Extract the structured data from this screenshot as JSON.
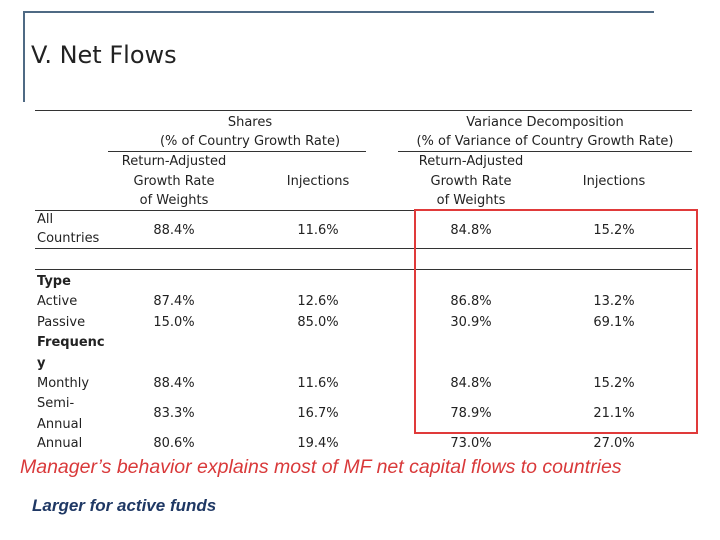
{
  "slide": {
    "title": "V. Net Flows",
    "frame_color": "#4f6a84",
    "highlight_color": "#e03a3a",
    "caption": "Manager’s behavior explains most of MF net capital flows to countries",
    "caption_color": "#d9393a",
    "subnote": "Larger for active funds",
    "subnote_color": "#1f3864"
  },
  "table": {
    "groups": [
      {
        "title": "Shares",
        "subtitle": "(% of Country Growth Rate)"
      },
      {
        "title": "Variance Decomposition",
        "subtitle": "(% of Variance of Country Growth Rate)"
      }
    ],
    "columns": [
      {
        "line1": "Return-Adjusted",
        "line2": "Growth Rate",
        "line3": "of Weights"
      },
      {
        "label": "Injections"
      },
      {
        "line1": "Return-Adjusted",
        "line2": "Growth Rate",
        "line3": "of Weights"
      },
      {
        "label": "Injections"
      }
    ],
    "all": {
      "label1": "All",
      "label2": "Countries",
      "values": [
        "88.4%",
        "11.6%",
        "84.8%",
        "15.2%"
      ]
    },
    "type_label": "Type",
    "type_rows": [
      {
        "label": "Active",
        "values": [
          "87.4%",
          "12.6%",
          "86.8%",
          "13.2%"
        ]
      },
      {
        "label": "Passive",
        "values": [
          "15.0%",
          "85.0%",
          "30.9%",
          "69.1%"
        ]
      }
    ],
    "freq_label1": "Frequenc",
    "freq_label2": "y",
    "freq_rows": [
      {
        "label": "Monthly",
        "values": [
          "88.4%",
          "11.6%",
          "84.8%",
          "15.2%"
        ]
      },
      {
        "label1": "Semi-",
        "label2": "Annual",
        "values": [
          "83.3%",
          "16.7%",
          "78.9%",
          "21.1%"
        ]
      },
      {
        "label": "Annual",
        "values": [
          "80.6%",
          "19.4%",
          "73.0%",
          "27.0%"
        ]
      }
    ]
  }
}
